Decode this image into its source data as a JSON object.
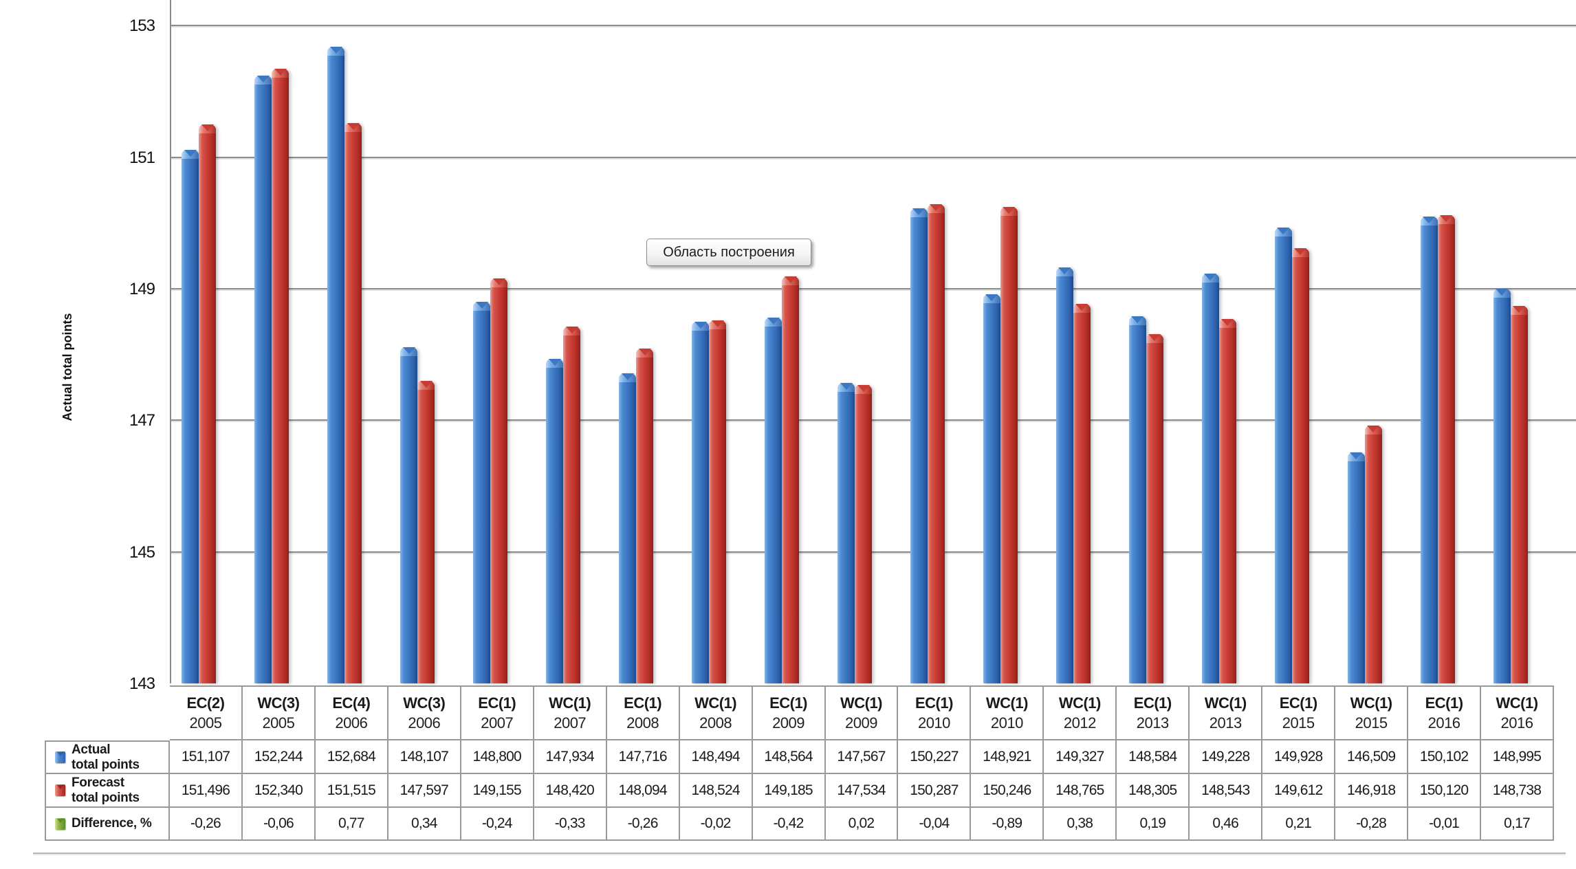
{
  "tooltip": {
    "text": "Область построения"
  },
  "chart_data": {
    "type": "bar",
    "title": "",
    "xlabel": "",
    "ylabel": "Actual total points",
    "ylim": [
      143,
      153.39
    ],
    "yticks": [
      143,
      145,
      147,
      149,
      151,
      153
    ],
    "grid": true,
    "legend_position": "table-left",
    "categories": [
      {
        "code": "EC(2)",
        "year": "2005"
      },
      {
        "code": "WC(3)",
        "year": "2005"
      },
      {
        "code": "EC(4)",
        "year": "2006"
      },
      {
        "code": "WC(3)",
        "year": "2006"
      },
      {
        "code": "EC(1)",
        "year": "2007"
      },
      {
        "code": "WC(1)",
        "year": "2007"
      },
      {
        "code": "EC(1)",
        "year": "2008"
      },
      {
        "code": "WC(1)",
        "year": "2008"
      },
      {
        "code": "EC(1)",
        "year": "2009"
      },
      {
        "code": "WC(1)",
        "year": "2009"
      },
      {
        "code": "EC(1)",
        "year": "2010"
      },
      {
        "code": "WC(1)",
        "year": "2010"
      },
      {
        "code": "WC(1)",
        "year": "2012"
      },
      {
        "code": "EC(1)",
        "year": "2013"
      },
      {
        "code": "WC(1)",
        "year": "2013"
      },
      {
        "code": "EC(1)",
        "year": "2015"
      },
      {
        "code": "WC(1)",
        "year": "2015"
      },
      {
        "code": "EC(1)",
        "year": "2016"
      },
      {
        "code": "WC(1)",
        "year": "2016"
      }
    ],
    "series": [
      {
        "name": "Actual total points",
        "label_lines": [
          "Actual",
          "total points"
        ],
        "color": "#3B77C2",
        "values": [
          151.107,
          152.244,
          152.684,
          148.107,
          148.8,
          147.934,
          147.716,
          148.494,
          148.564,
          147.567,
          150.227,
          148.921,
          149.327,
          148.584,
          149.228,
          149.928,
          146.509,
          150.102,
          148.995
        ],
        "display": [
          "151,107",
          "152,244",
          "152,684",
          "148,107",
          "148,800",
          "147,934",
          "147,716",
          "148,494",
          "148,564",
          "147,567",
          "150,227",
          "148,921",
          "149,327",
          "148,584",
          "149,228",
          "149,928",
          "146,509",
          "150,102",
          "148,995"
        ]
      },
      {
        "name": "Forecast total points",
        "label_lines": [
          "Forecast",
          "total points"
        ],
        "color": "#C73C33",
        "values": [
          151.496,
          152.34,
          151.515,
          147.597,
          149.155,
          148.42,
          148.094,
          148.524,
          149.185,
          147.534,
          150.287,
          150.246,
          148.765,
          148.305,
          148.543,
          149.612,
          146.918,
          150.12,
          148.738
        ],
        "display": [
          "151,496",
          "152,340",
          "151,515",
          "147,597",
          "149,155",
          "148,420",
          "148,094",
          "148,524",
          "149,185",
          "147,534",
          "150,287",
          "150,246",
          "148,765",
          "148,305",
          "148,543",
          "149,612",
          "146,918",
          "150,120",
          "148,738"
        ]
      },
      {
        "name": "Difference, %",
        "label_lines": [
          "Difference, %"
        ],
        "color": "#7EA83F",
        "values": [
          -0.26,
          -0.06,
          0.77,
          0.34,
          -0.24,
          -0.33,
          -0.26,
          -0.02,
          -0.42,
          0.02,
          -0.04,
          -0.89,
          0.38,
          0.19,
          0.46,
          0.21,
          -0.28,
          -0.01,
          0.17
        ],
        "display": [
          "-0,26",
          "-0,06",
          "0,77",
          "0,34",
          "-0,24",
          "-0,33",
          "-0,26",
          "-0,02",
          "-0,42",
          "0,02",
          "-0,04",
          "-0,89",
          "0,38",
          "0,19",
          "0,46",
          "0,21",
          "-0,28",
          "-0,01",
          "0,17"
        ]
      }
    ]
  }
}
